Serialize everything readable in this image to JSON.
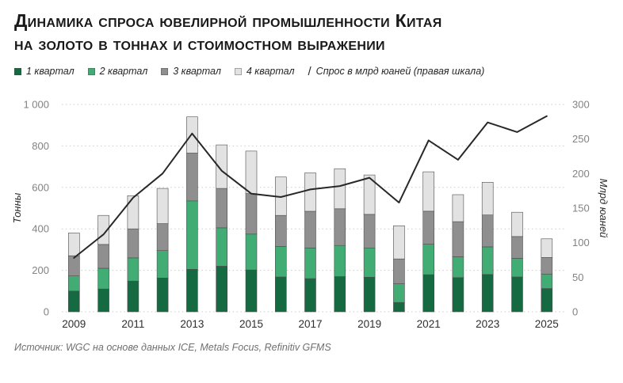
{
  "title": {
    "line1": "Динамика спроса ювелирной промышленности Китая",
    "line2": "на золото в тоннах и стоимостном выражении"
  },
  "legend": [
    {
      "label": "1 квартал",
      "swatch": "square",
      "color": "#156a42"
    },
    {
      "label": "2 квартал",
      "swatch": "square",
      "color": "#41ad75"
    },
    {
      "label": "3 квартал",
      "swatch": "square",
      "color": "#8f8f8f"
    },
    {
      "label": "4 квартал",
      "swatch": "square",
      "color": "#e2e2e2"
    },
    {
      "label": "Спрос в млрд юаней (правая шкала)",
      "swatch": "line",
      "color": "#282828"
    }
  ],
  "source": "Источник: WGC на основе данных ICE, Metals Focus, Refinitiv GFMS",
  "colors": {
    "q1": "#156a42",
    "q2": "#41ad75",
    "q3": "#8f8f8f",
    "q4": "#e2e2e2",
    "line": "#282828",
    "grid": "#cbcbcb",
    "title_text": "#191919",
    "tick_text": "#828282"
  },
  "chart_data": {
    "type": "combo",
    "bar_mode": "stacked",
    "title": "Динамика спроса ювелирной промышленности Китая на золото в тоннах и стоимостном выражении",
    "grid": "horizontal-dotted",
    "legend_position": "top-left",
    "categories": [
      "2009",
      "2010",
      "2011",
      "2012",
      "2013",
      "2014",
      "2015",
      "2016",
      "2017",
      "2018",
      "2019",
      "2020",
      "2021",
      "2022",
      "2023",
      "2024",
      "2025"
    ],
    "series": [
      {
        "name": "1 квартал",
        "type": "bar",
        "axis": "left",
        "color": "#156a42",
        "values": [
          100,
          110,
          148,
          163,
          205,
          220,
          202,
          168,
          160,
          170,
          167,
          45,
          179,
          165,
          180,
          168,
          112
        ]
      },
      {
        "name": "2 квартал",
        "type": "bar",
        "axis": "left",
        "color": "#41ad75",
        "values": [
          73,
          100,
          112,
          132,
          330,
          185,
          173,
          147,
          147,
          150,
          140,
          90,
          147,
          100,
          133,
          90,
          70
        ]
      },
      {
        "name": "3 квартал",
        "type": "bar",
        "axis": "left",
        "color": "#8f8f8f",
        "values": [
          97,
          115,
          140,
          130,
          230,
          190,
          195,
          150,
          178,
          177,
          163,
          120,
          159,
          170,
          154,
          105,
          80
        ]
      },
      {
        "name": "4 квартал",
        "type": "bar",
        "axis": "left",
        "color": "#e2e2e2",
        "values": [
          110,
          140,
          160,
          170,
          175,
          210,
          205,
          185,
          185,
          193,
          190,
          160,
          190,
          130,
          158,
          117,
          90
        ]
      },
      {
        "name": "Спрос в млрд юаней (правая шкала)",
        "type": "line",
        "axis": "right",
        "color": "#282828",
        "values": [
          78,
          112,
          165,
          200,
          258,
          204,
          171,
          166,
          177,
          182,
          194,
          158,
          248,
          220,
          274,
          260,
          283
        ]
      }
    ],
    "left_axis": {
      "label": "Тонны",
      "min": 0,
      "max": 1000,
      "ticks": [
        0,
        200,
        400,
        600,
        800,
        1000
      ],
      "tick_labels": [
        "0",
        "200",
        "400",
        "600",
        "800",
        "1 000"
      ]
    },
    "right_axis": {
      "label": "Млрд юаней",
      "min": 0,
      "max": 300,
      "ticks": [
        0,
        50,
        100,
        150,
        200,
        250,
        300
      ],
      "tick_labels": [
        "0",
        "50",
        "100",
        "150",
        "200",
        "250",
        "300"
      ]
    },
    "x_axis": {
      "visible_tick_labels": [
        "2009",
        "2011",
        "2013",
        "2015",
        "2017",
        "2019",
        "2021",
        "2023",
        "2025"
      ]
    }
  }
}
